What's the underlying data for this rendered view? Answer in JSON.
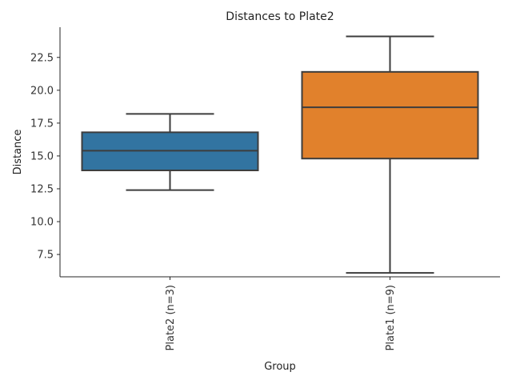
{
  "chart_data": {
    "type": "box",
    "title": "Distances to Plate2",
    "xlabel": "Group",
    "ylabel": "Distance",
    "ylim": [
      5.8,
      24.8
    ],
    "yticks": [
      7.5,
      10.0,
      12.5,
      15.0,
      17.5,
      20.0,
      22.5
    ],
    "ytick_labels": [
      "7.5",
      "10.0",
      "12.5",
      "15.0",
      "17.5",
      "20.0",
      "22.5"
    ],
    "grid": false,
    "categories": [
      "Plate2 (n=3)",
      "Plate1 (n=9)"
    ],
    "boxes": [
      {
        "category": "Plate2 (n=3)",
        "whisker_low": 12.4,
        "q1": 13.9,
        "median": 15.4,
        "q3": 16.8,
        "whisker_high": 18.2,
        "color": "#3274a1"
      },
      {
        "category": "Plate1 (n=9)",
        "whisker_low": 6.1,
        "q1": 14.8,
        "median": 18.7,
        "q3": 21.4,
        "whisker_high": 24.1,
        "color": "#e1812c"
      }
    ]
  }
}
